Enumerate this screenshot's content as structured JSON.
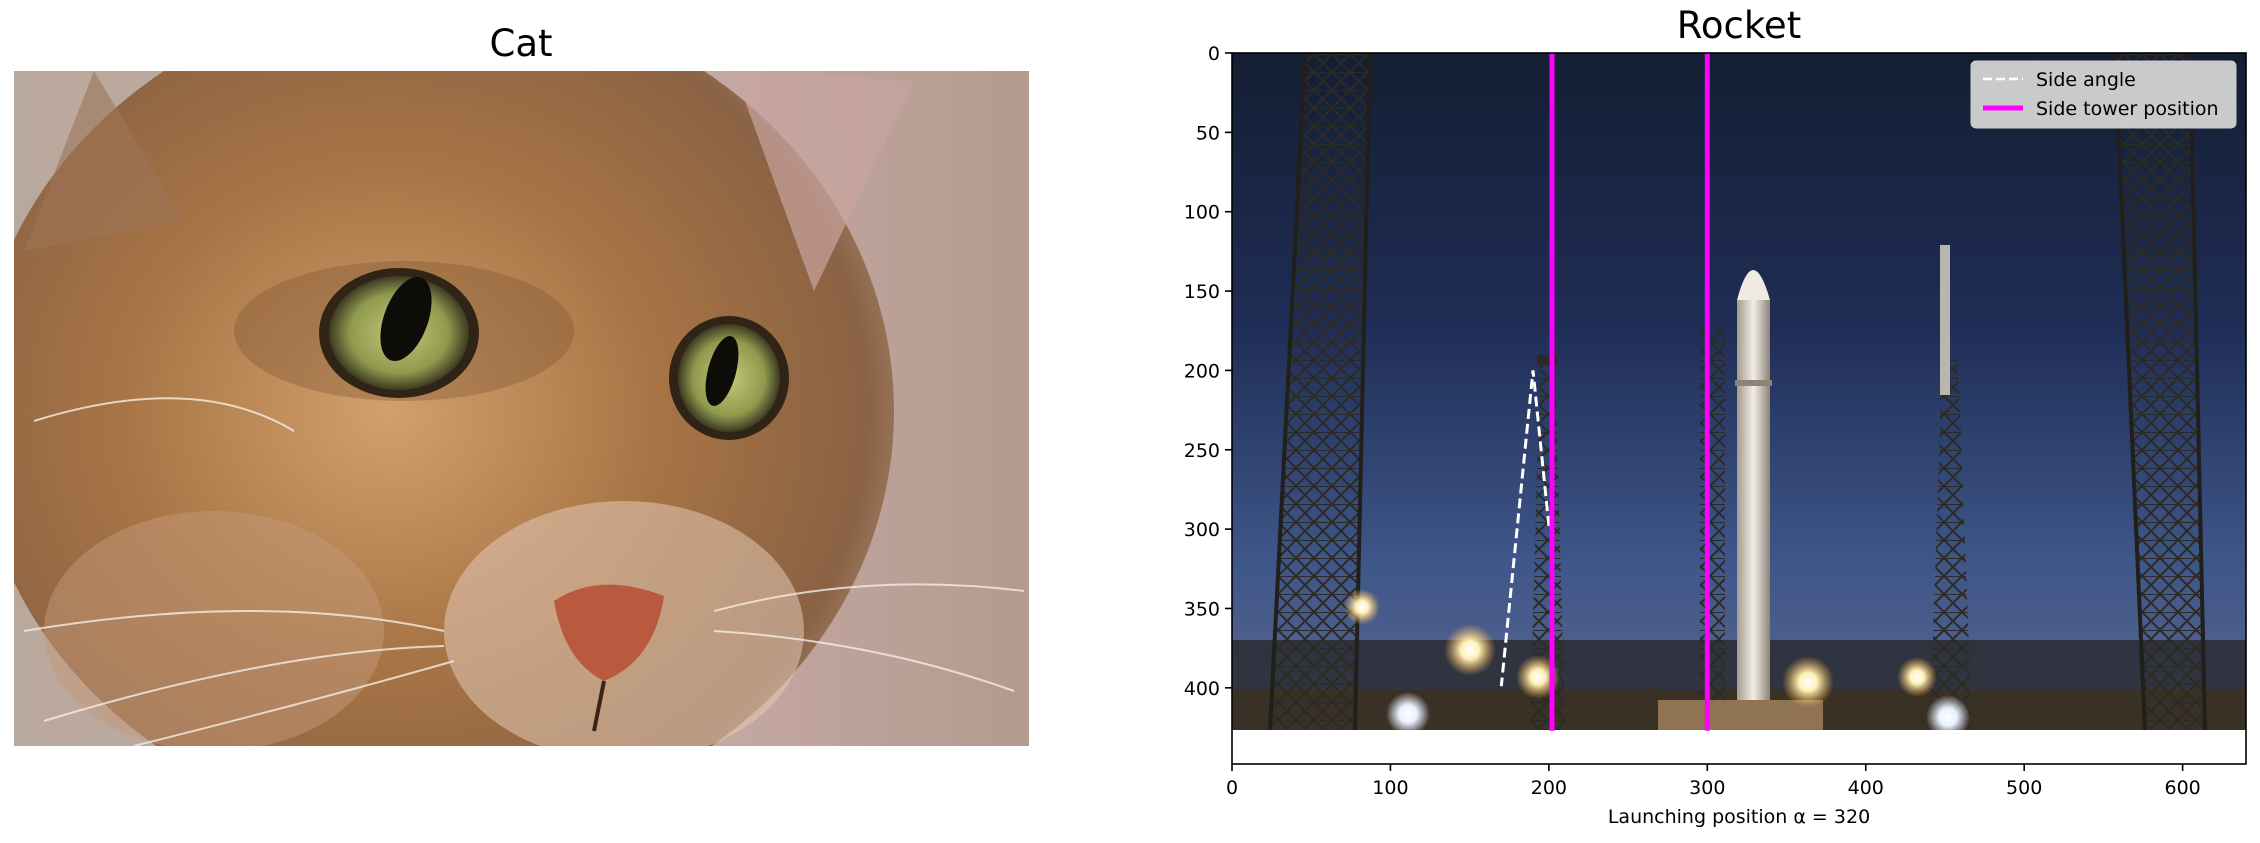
{
  "left_panel": {
    "title": "Cat",
    "image": "photo of a tabby cat face close-up"
  },
  "right_panel": {
    "title": "Rocket",
    "image": "photo of a rocket on a launch pad at dusk between lattice towers"
  },
  "chart_data": {
    "type": "line",
    "title": "Rocket",
    "xlabel": "Launching position $\\alpha = 320$",
    "xlabel_display": "Launching position α = 320",
    "ylabel": "",
    "xlim": [
      0,
      640
    ],
    "ylim": [
      448,
      0
    ],
    "xticks": [
      0,
      100,
      200,
      300,
      400,
      500,
      600
    ],
    "yticks": [
      0,
      50,
      100,
      150,
      200,
      250,
      300,
      350,
      400
    ],
    "grid": false,
    "legend_position": "top-right",
    "series": [
      {
        "name": "Side angle",
        "style": "dashed",
        "color": "#ffffff",
        "x": [
          200,
          190,
          170
        ],
        "y": [
          298,
          200,
          399
        ]
      },
      {
        "name": "Side tower position",
        "style": "solid",
        "color": "#ff00ff",
        "x": [
          202,
          202
        ],
        "y": [
          0,
          427
        ]
      },
      {
        "name": "",
        "style": "solid",
        "color": "#ff00ff",
        "x": [
          300,
          300
        ],
        "y": [
          0,
          427
        ]
      }
    ]
  }
}
